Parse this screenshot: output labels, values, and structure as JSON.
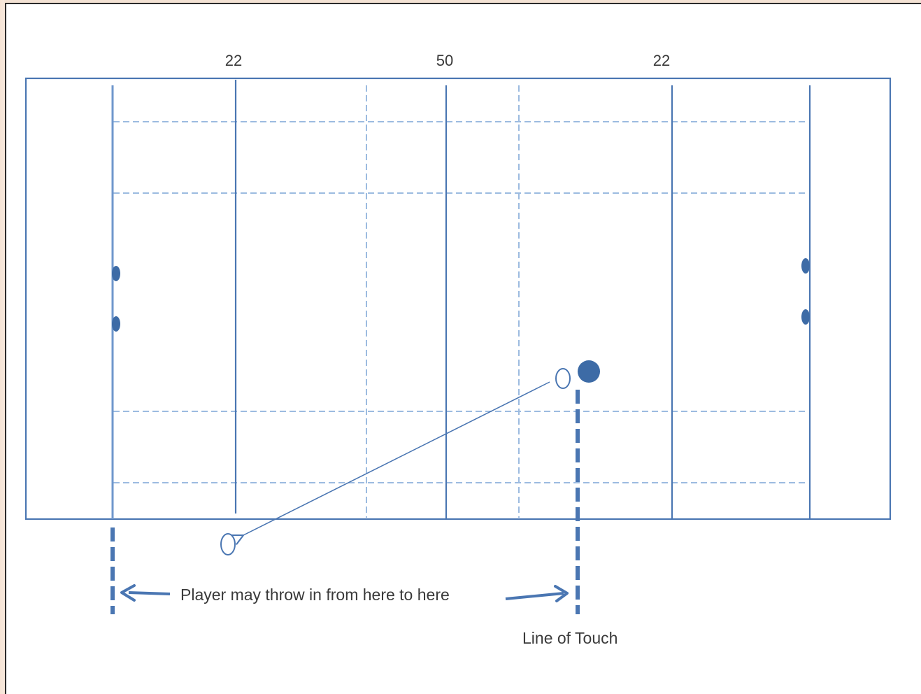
{
  "field_labels": {
    "left_22": "22",
    "center_50": "50",
    "right_22": "22"
  },
  "annotations": {
    "throw_range": "Player may throw in from here to here",
    "line_of_touch": "Line of Touch"
  },
  "colors": {
    "line": "#4a76b2",
    "dashed": "#9cbbe0",
    "text": "#3a3a3a",
    "background": "#f3e2d4"
  }
}
